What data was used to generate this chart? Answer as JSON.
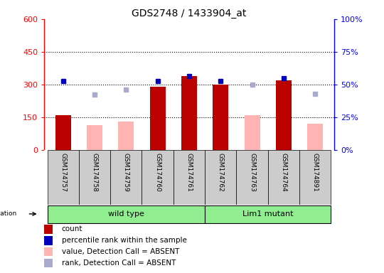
{
  "title": "GDS2748 / 1433904_at",
  "samples": [
    "GSM174757",
    "GSM174758",
    "GSM174759",
    "GSM174760",
    "GSM174761",
    "GSM174762",
    "GSM174763",
    "GSM174764",
    "GSM174891"
  ],
  "count_present": [
    160,
    null,
    null,
    290,
    340,
    300,
    null,
    320,
    null
  ],
  "count_absent": [
    null,
    115,
    130,
    null,
    null,
    null,
    160,
    null,
    120
  ],
  "percentile_present": [
    315,
    null,
    null,
    315,
    340,
    315,
    null,
    330,
    null
  ],
  "percentile_absent": [
    null,
    255,
    278,
    null,
    null,
    null,
    300,
    null,
    258
  ],
  "ylim_left": [
    0,
    600
  ],
  "ylim_right": [
    0,
    100
  ],
  "yticks_left": [
    0,
    150,
    300,
    450,
    600
  ],
  "yticks_right": [
    0,
    25,
    50,
    75,
    100
  ],
  "ytick_labels_right": [
    "0%",
    "25%",
    "50%",
    "75%",
    "100%"
  ],
  "hlines": [
    150,
    300,
    450
  ],
  "wt_count": 5,
  "mut_count": 4,
  "bar_width": 0.5,
  "bar_color_present": "#bb0000",
  "bar_color_absent": "#ffb3b3",
  "dot_color_present": "#0000bb",
  "dot_color_absent": "#aaaacc",
  "bg_plot": "#ffffff",
  "bg_label": "#cccccc",
  "bg_group": "#90ee90",
  "legend_items": [
    {
      "color": "#bb0000",
      "label": "count"
    },
    {
      "color": "#0000bb",
      "label": "percentile rank within the sample"
    },
    {
      "color": "#ffb3b3",
      "label": "value, Detection Call = ABSENT"
    },
    {
      "color": "#aaaacc",
      "label": "rank, Detection Call = ABSENT"
    }
  ]
}
